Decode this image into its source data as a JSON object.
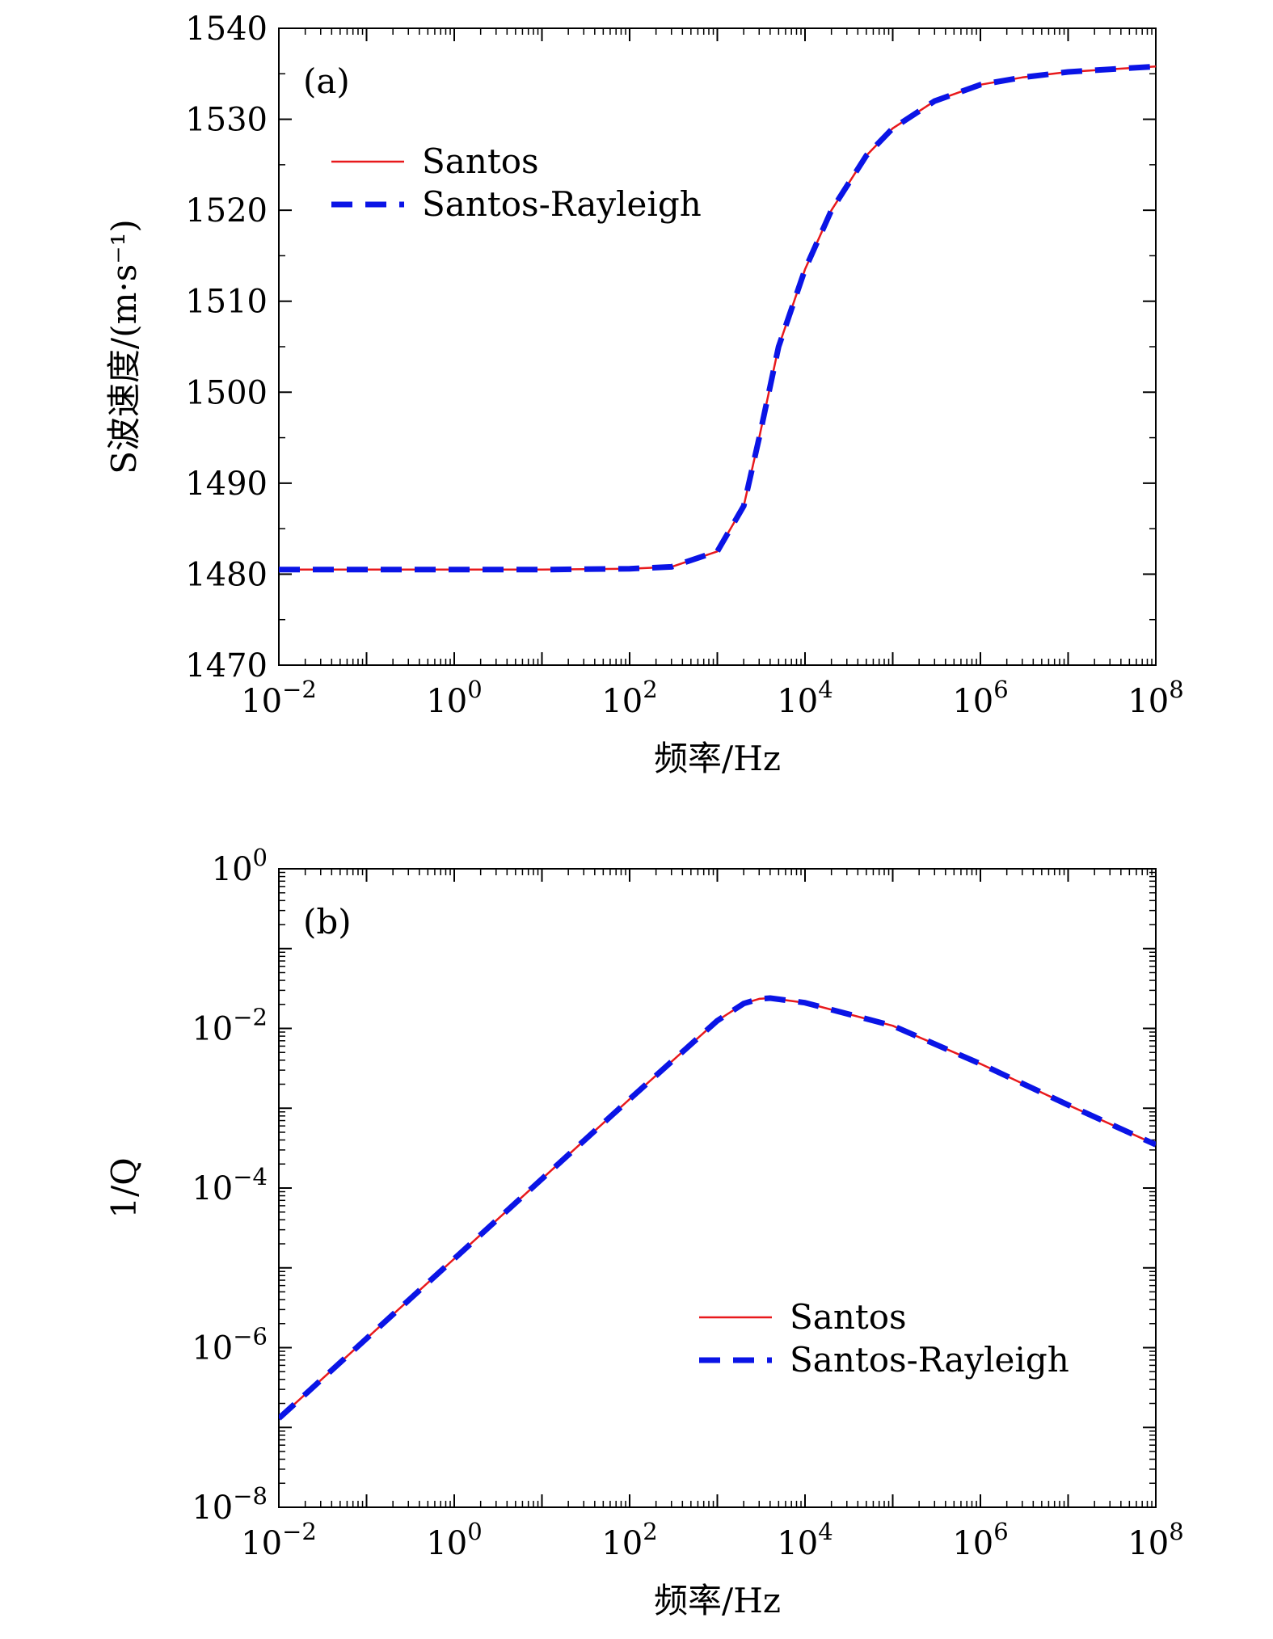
{
  "chart_data": [
    {
      "type": "line",
      "panel_label": "(a)",
      "xlabel": "频率/Hz",
      "ylabel": "S波速度/(m·s⁻¹)",
      "xscale": "log",
      "xlim": [
        0.01,
        100000000
      ],
      "ylim": [
        1470,
        1540
      ],
      "xticks": [
        {
          "base": "10",
          "exp": "−2"
        },
        {
          "base": "10",
          "exp": "0"
        },
        {
          "base": "10",
          "exp": "2"
        },
        {
          "base": "10",
          "exp": "4"
        },
        {
          "base": "10",
          "exp": "6"
        },
        {
          "base": "10",
          "exp": "8"
        }
      ],
      "yticks": [
        "1470",
        "1480",
        "1490",
        "1500",
        "1510",
        "1520",
        "1530",
        "1540"
      ],
      "legend_position": "upper-left",
      "x": [
        0.01,
        0.1,
        1,
        10,
        100,
        300,
        1000,
        2000,
        3000,
        5000,
        10000,
        20000,
        50000,
        100000,
        300000,
        1000000,
        3000000,
        10000000,
        30000000,
        100000000
      ],
      "series": [
        {
          "name": "Santos",
          "color": "#e8191c",
          "style": "solid",
          "values": [
            1480.5,
            1480.5,
            1480.5,
            1480.5,
            1480.6,
            1480.8,
            1482.5,
            1487.5,
            1495,
            1505,
            1513.5,
            1520,
            1526,
            1529,
            1532,
            1533.8,
            1534.6,
            1535.2,
            1535.5,
            1535.8
          ]
        },
        {
          "name": "Santos-Rayleigh",
          "color": "#0a14e6",
          "style": "dashed",
          "values": [
            1480.5,
            1480.5,
            1480.5,
            1480.5,
            1480.6,
            1480.8,
            1482.5,
            1487.5,
            1495,
            1505,
            1513.5,
            1520,
            1526,
            1529,
            1532,
            1533.8,
            1534.6,
            1535.2,
            1535.5,
            1535.8
          ]
        }
      ]
    },
    {
      "type": "line",
      "panel_label": "(b)",
      "xlabel": "频率/Hz",
      "ylabel": "1/Q",
      "xscale": "log",
      "yscale": "log",
      "xlim": [
        0.01,
        100000000
      ],
      "ylim": [
        1e-08,
        1
      ],
      "xticks": [
        {
          "base": "10",
          "exp": "−2"
        },
        {
          "base": "10",
          "exp": "0"
        },
        {
          "base": "10",
          "exp": "2"
        },
        {
          "base": "10",
          "exp": "4"
        },
        {
          "base": "10",
          "exp": "6"
        },
        {
          "base": "10",
          "exp": "8"
        }
      ],
      "yticks": [
        {
          "base": "10",
          "exp": "−8"
        },
        {
          "base": "10",
          "exp": "−6"
        },
        {
          "base": "10",
          "exp": "−4"
        },
        {
          "base": "10",
          "exp": "−2"
        },
        {
          "base": "10",
          "exp": "0"
        }
      ],
      "legend_position": "lower-right",
      "x": [
        0.01,
        0.1,
        1,
        10,
        100,
        1000,
        2000,
        3000,
        4000,
        10000,
        100000,
        1000000,
        10000000,
        100000000
      ],
      "series": [
        {
          "name": "Santos",
          "color": "#e8191c",
          "style": "solid",
          "values": [
            1.3e-07,
            1.3e-06,
            1.3e-05,
            0.00013,
            0.0013,
            0.0125,
            0.0205,
            0.0235,
            0.024,
            0.021,
            0.0108,
            0.0036,
            0.0011,
            0.00035
          ]
        },
        {
          "name": "Santos-Rayleigh",
          "color": "#0a14e6",
          "style": "dashed",
          "values": [
            1.3e-07,
            1.3e-06,
            1.3e-05,
            0.00013,
            0.0013,
            0.0125,
            0.0205,
            0.0235,
            0.024,
            0.021,
            0.0108,
            0.0036,
            0.0011,
            0.00035
          ]
        }
      ]
    }
  ]
}
